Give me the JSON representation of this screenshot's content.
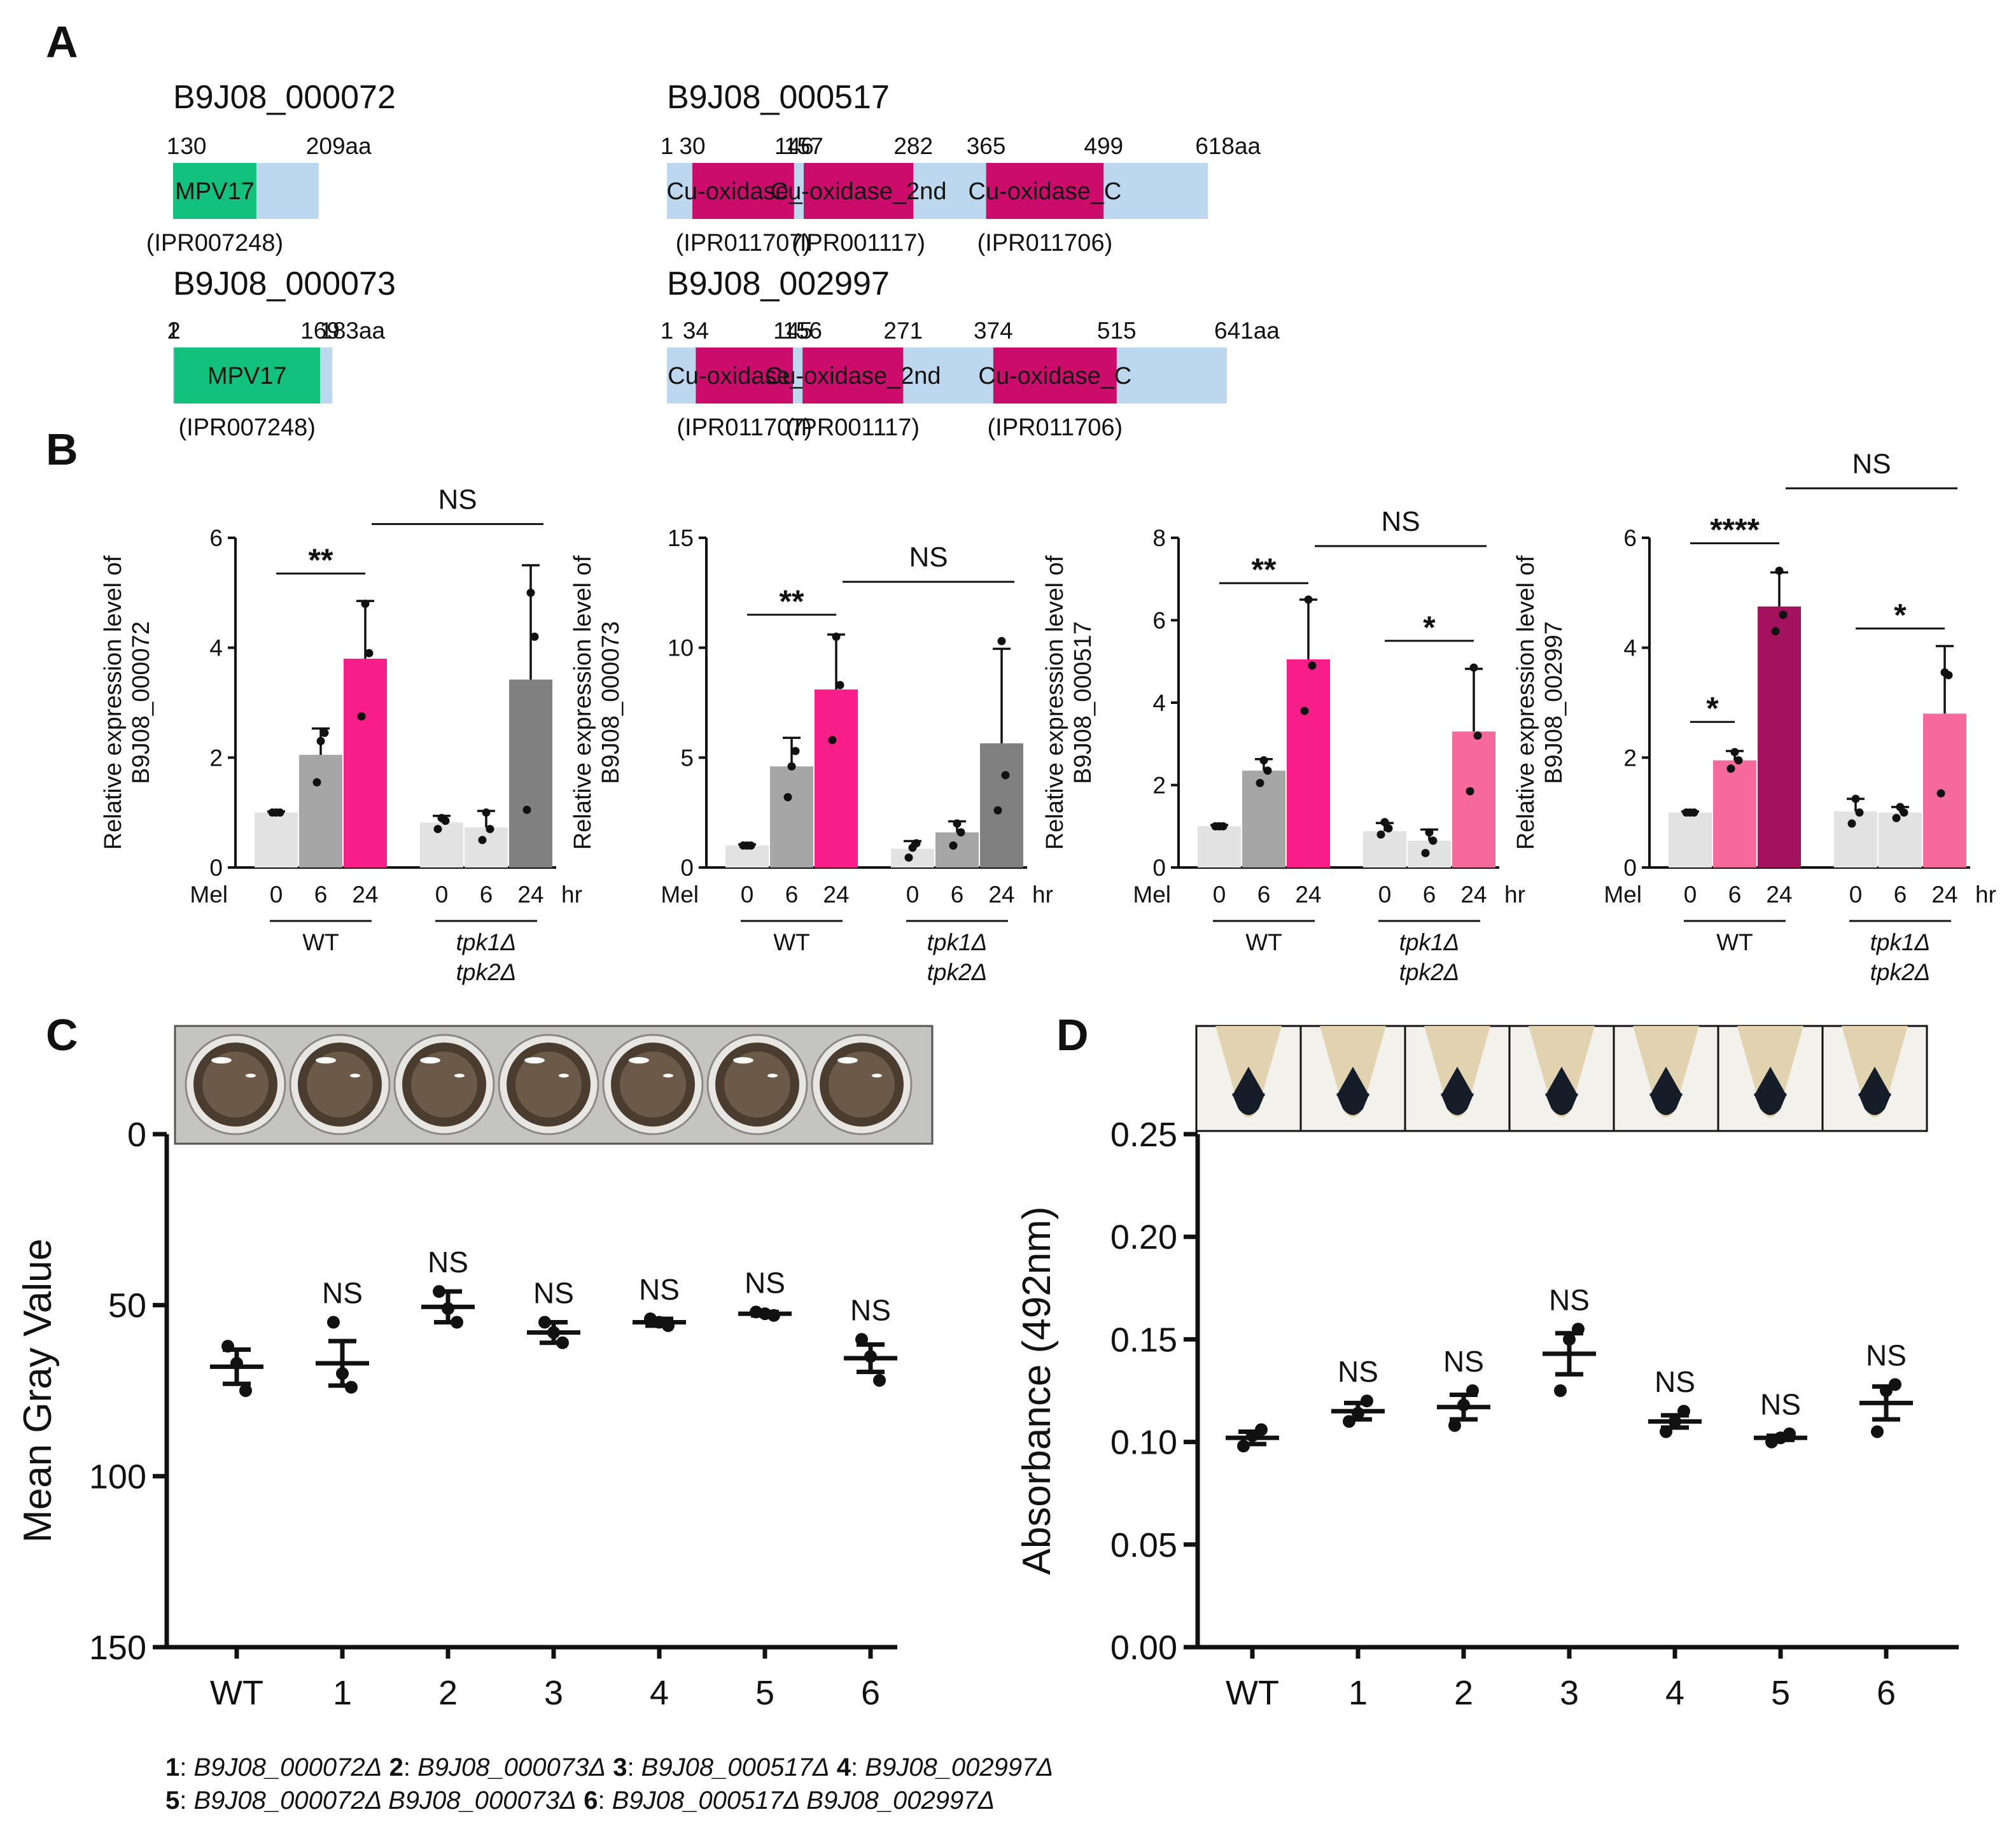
{
  "panel_labels": {
    "a": "A",
    "b": "B",
    "c": "C",
    "d": "D"
  },
  "colors": {
    "mpv17": "#12c27c",
    "cu": "#cc0c6a",
    "backbone": "#bdd8ee",
    "bar_light": "#e2e2e2",
    "bar_mid": "#a6a6a6",
    "bar_dark": "#808080",
    "bar_hot": "#f81e8a",
    "bar_pink": "#f56a9a",
    "bar_maroon": "#a3125c"
  },
  "panel_a": {
    "proteins": [
      {
        "name": "B9J08_000072",
        "length": 209,
        "length_label": "209aa",
        "color_seq": "mpv17",
        "position_labels": [
          "1",
          "30"
        ],
        "domains": [
          {
            "label": "MPV17",
            "start": 1,
            "end": 120,
            "ipr": "(IPR007248)"
          }
        ]
      },
      {
        "name": "B9J08_000073",
        "length": 183,
        "length_label": "183aa",
        "position_labels": [
          "1",
          "2",
          "169"
        ],
        "domains": [
          {
            "label": "MPV17",
            "start": 2,
            "end": 169,
            "ipr": "(IPR007248)"
          }
        ]
      },
      {
        "name": "B9J08_000517",
        "length": 618,
        "length_label": "618aa",
        "position_labels": [
          "1",
          "30",
          "146",
          "157",
          "282",
          "365",
          "499"
        ],
        "domains": [
          {
            "label": "Cu-oxidase_N",
            "start": 30,
            "end": 146,
            "ipr": "(IPR011707)"
          },
          {
            "label": "Cu-oxidase_2nd",
            "start": 157,
            "end": 282,
            "ipr": "(IPR001117)"
          },
          {
            "label": "Cu-oxidase_C",
            "start": 365,
            "end": 499,
            "ipr": "(IPR011706)"
          }
        ]
      },
      {
        "name": "B9J08_002997",
        "length": 641,
        "length_label": "641aa",
        "position_labels": [
          "1",
          "34",
          "145",
          "156",
          "271",
          "374",
          "515"
        ],
        "domains": [
          {
            "label": "Cu-oxidase_N",
            "start": 34,
            "end": 145,
            "ipr": "(IPR011707)"
          },
          {
            "label": "Cu-oxidase_2nd",
            "start": 156,
            "end": 271,
            "ipr": "(IPR001117)"
          },
          {
            "label": "Cu-oxidase_C",
            "start": 374,
            "end": 515,
            "ipr": "(IPR011706)"
          }
        ]
      }
    ]
  },
  "chart_data": [
    {
      "id": "B1",
      "type": "bar",
      "ylabel_line1": "Relative expression level of",
      "ylabel_line2": "B9J08_000072",
      "ylim": [
        0,
        6
      ],
      "yticks": [
        "0",
        "2",
        "4",
        "6"
      ],
      "row_label": "Mel",
      "xticks": [
        "0",
        "6",
        "24",
        "0",
        "6",
        "24"
      ],
      "unit": "hr",
      "groups": [
        "WT",
        "tpk1Δ",
        "tpk2Δ"
      ],
      "values": [
        1.0,
        2.05,
        3.8,
        0.82,
        0.73,
        3.42
      ],
      "errors": [
        0.02,
        0.48,
        1.05,
        0.12,
        0.3,
        2.08
      ],
      "points": [
        [
          1.0,
          1.0,
          1.0
        ],
        [
          1.55,
          2.45,
          2.3
        ],
        [
          2.75,
          3.9,
          4.8
        ],
        [
          0.7,
          0.85,
          0.9
        ],
        [
          0.5,
          0.7,
          1.0
        ],
        [
          1.05,
          4.2,
          5.0
        ]
      ],
      "bar_colors": [
        "bar_light",
        "bar_mid",
        "bar_hot",
        "bar_light",
        "bar_light",
        "bar_dark"
      ],
      "annotations": [
        {
          "label": "**",
          "from": 0,
          "to": 2,
          "y": 5.35
        },
        {
          "label": "NS",
          "from": 2,
          "to": 5,
          "y": 6.25
        }
      ]
    },
    {
      "id": "B2",
      "type": "bar",
      "ylabel_line1": "Relative expression level of",
      "ylabel_line2": "B9J08_000073",
      "ylim": [
        0,
        15
      ],
      "yticks": [
        "0",
        "5",
        "10",
        "15"
      ],
      "row_label": "Mel",
      "xticks": [
        "0",
        "6",
        "24",
        "0",
        "6",
        "24"
      ],
      "unit": "hr",
      "groups": [
        "WT",
        "tpk1Δ",
        "tpk2Δ"
      ],
      "values": [
        1.0,
        4.6,
        8.1,
        0.85,
        1.6,
        5.65
      ],
      "errors": [
        0.05,
        1.3,
        2.5,
        0.35,
        0.5,
        4.3
      ],
      "points": [
        [
          1.0,
          1.0,
          1.0
        ],
        [
          3.2,
          5.3,
          4.6
        ],
        [
          5.8,
          8.3,
          10.5
        ],
        [
          0.45,
          1.1,
          0.9
        ],
        [
          1.0,
          1.6,
          2.0
        ],
        [
          2.6,
          4.2,
          10.3
        ]
      ],
      "bar_colors": [
        "bar_light",
        "bar_mid",
        "bar_hot",
        "bar_light",
        "bar_mid",
        "bar_dark"
      ],
      "annotations": [
        {
          "label": "**",
          "from": 0,
          "to": 2,
          "y": 11.5
        },
        {
          "label": "NS",
          "from": 2,
          "to": 5,
          "y": 13.0
        }
      ]
    },
    {
      "id": "B3",
      "type": "bar",
      "ylabel_line1": "Relative expression level of",
      "ylabel_line2": "B9J08_000517",
      "ylim": [
        0,
        8
      ],
      "yticks": [
        "0",
        "2",
        "4",
        "6",
        "8"
      ],
      "row_label": "Mel",
      "xticks": [
        "0",
        "6",
        "24",
        "0",
        "6",
        "24"
      ],
      "unit": "hr",
      "groups": [
        "WT",
        "tpk1Δ",
        "tpk2Δ"
      ],
      "values": [
        1.0,
        2.35,
        5.05,
        0.88,
        0.65,
        3.3
      ],
      "errors": [
        0.03,
        0.28,
        1.45,
        0.2,
        0.27,
        1.52
      ],
      "points": [
        [
          1.0,
          1.0,
          1.0
        ],
        [
          2.05,
          2.35,
          2.6
        ],
        [
          3.8,
          4.9,
          6.5
        ],
        [
          0.8,
          0.95,
          1.1
        ],
        [
          0.35,
          0.65,
          0.85
        ],
        [
          1.85,
          3.2,
          4.85
        ]
      ],
      "bar_colors": [
        "bar_light",
        "bar_mid",
        "bar_hot",
        "bar_light",
        "bar_light",
        "bar_pink"
      ],
      "annotations": [
        {
          "label": "**",
          "from": 0,
          "to": 2,
          "y": 6.9
        },
        {
          "label": "NS",
          "from": 2,
          "to": 5,
          "y": 7.8
        },
        {
          "label": "*",
          "from": 3,
          "to": 5,
          "y": 5.5
        }
      ]
    },
    {
      "id": "B4",
      "type": "bar",
      "ylabel_line1": "Relative expression level of",
      "ylabel_line2": "B9J08_002997",
      "ylim": [
        0,
        6
      ],
      "yticks": [
        "0",
        "2",
        "4",
        "6"
      ],
      "row_label": "Mel",
      "xticks": [
        "0",
        "6",
        "24",
        "0",
        "6",
        "24"
      ],
      "unit": "hr",
      "groups": [
        "WT",
        "tpk1Δ",
        "tpk2Δ"
      ],
      "values": [
        1.0,
        1.95,
        4.75,
        1.02,
        1.0,
        2.8
      ],
      "errors": [
        0.02,
        0.17,
        0.62,
        0.23,
        0.1,
        1.23
      ],
      "points": [
        [
          1.0,
          1.0,
          1.0
        ],
        [
          1.8,
          1.95,
          2.1
        ],
        [
          4.3,
          4.6,
          5.4
        ],
        [
          0.8,
          1.0,
          1.25
        ],
        [
          0.9,
          1.0,
          1.1
        ],
        [
          1.35,
          3.5,
          3.55
        ]
      ],
      "bar_colors": [
        "bar_light",
        "bar_pink",
        "bar_maroon",
        "bar_light",
        "bar_light",
        "bar_pink"
      ],
      "annotations": [
        {
          "label": "*",
          "from": 0,
          "to": 1,
          "y": 2.65
        },
        {
          "label": "****",
          "from": 0,
          "to": 2,
          "y": 5.9
        },
        {
          "label": "NS",
          "from": 2,
          "to": 5,
          "y": 6.9
        },
        {
          "label": "*",
          "from": 3,
          "to": 5,
          "y": 4.35
        }
      ]
    },
    {
      "id": "C",
      "type": "scatter",
      "ylabel": "Mean Gray Value",
      "ylim": [
        0,
        150
      ],
      "y_inverted": true,
      "yticks": [
        "0",
        "50",
        "100",
        "150"
      ],
      "categories": [
        "WT",
        "1",
        "2",
        "3",
        "4",
        "5",
        "6"
      ],
      "means": [
        68,
        67,
        50.5,
        58,
        55,
        52.5,
        65.5
      ],
      "sem": [
        5,
        6.5,
        4.5,
        3,
        1,
        0.5,
        4
      ],
      "points": [
        [
          62,
          67,
          75
        ],
        [
          55,
          70,
          74
        ],
        [
          46,
          51,
          55
        ],
        [
          55,
          58,
          61
        ],
        [
          54,
          55,
          56
        ],
        [
          52,
          52.5,
          53
        ],
        [
          60,
          65,
          72
        ]
      ],
      "annotations": [
        "",
        "NS",
        "NS",
        "NS",
        "NS",
        "NS",
        "NS"
      ]
    },
    {
      "id": "D",
      "type": "scatter",
      "ylabel": "Absorbance (492nm)",
      "ylim": [
        0,
        0.25
      ],
      "yticks": [
        "0.00",
        "0.05",
        "0.10",
        "0.15",
        "0.20",
        "0.25"
      ],
      "categories": [
        "WT",
        "1",
        "2",
        "3",
        "4",
        "5",
        "6"
      ],
      "means": [
        0.102,
        0.115,
        0.117,
        0.143,
        0.11,
        0.102,
        0.119
      ],
      "sem": [
        0.003,
        0.004,
        0.006,
        0.01,
        0.003,
        0.001,
        0.008
      ],
      "points": [
        [
          0.098,
          0.103,
          0.106
        ],
        [
          0.11,
          0.114,
          0.12
        ],
        [
          0.108,
          0.118,
          0.125
        ],
        [
          0.125,
          0.15,
          0.155
        ],
        [
          0.105,
          0.11,
          0.115
        ],
        [
          0.1,
          0.102,
          0.104
        ],
        [
          0.105,
          0.125,
          0.128
        ]
      ],
      "annotations": [
        "",
        "NS",
        "NS",
        "NS",
        "NS",
        "NS",
        "NS"
      ]
    }
  ],
  "legend": {
    "line1": [
      {
        "num": "1",
        "text": "B9J08_000072Δ"
      },
      {
        "num": "2",
        "text": "B9J08_000073Δ"
      },
      {
        "num": "3",
        "text": "B9J08_000517Δ"
      },
      {
        "num": "4",
        "text": "B9J08_002997Δ"
      }
    ],
    "line2": [
      {
        "num": "5",
        "text": "B9J08_000072Δ B9J08_000073Δ"
      },
      {
        "num": "6",
        "text": "B9J08_000517Δ B9J08_002997Δ"
      }
    ]
  }
}
